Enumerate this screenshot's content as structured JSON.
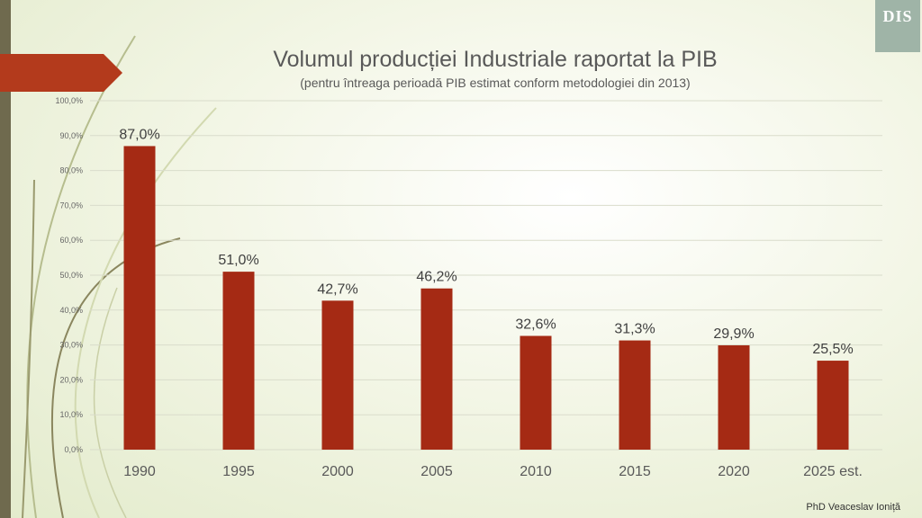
{
  "slide": {
    "title": "Volumul producției Industriale raportat la PIB",
    "subtitle": "(pentru întreaga perioadă PIB estimat conform metodologiei din 2013)",
    "credit": "PhD Veaceslav Ioniță",
    "logo_text": "DIS",
    "colors": {
      "bar": "#a52a14",
      "arrow": "#b33a1c",
      "left_bar": "#6f6a4e",
      "logo": "#9fb4a7"
    }
  },
  "chart_data": {
    "type": "bar",
    "categories": [
      "1990",
      "1995",
      "2000",
      "2005",
      "2010",
      "2015",
      "2020",
      "2025 est."
    ],
    "values": [
      87.0,
      51.0,
      42.7,
      46.2,
      32.6,
      31.3,
      29.9,
      25.5
    ],
    "data_labels": [
      "87,0%",
      "51,0%",
      "42,7%",
      "46,2%",
      "32,6%",
      "31,3%",
      "29,9%",
      "25,5%"
    ],
    "title": "Volumul producției Industriale raportat la PIB",
    "subtitle": "(pentru întreaga perioadă PIB estimat conform metodologiei din 2013)",
    "xlabel": "",
    "ylabel": "",
    "ylim": [
      0,
      100
    ],
    "yticks": [
      0,
      10,
      20,
      30,
      40,
      50,
      60,
      70,
      80,
      90,
      100
    ],
    "ytick_labels": [
      "0,0%",
      "10,0%",
      "20,0%",
      "30,0%",
      "40,0%",
      "50,0%",
      "60,0%",
      "70,0%",
      "80,0%",
      "90,0%",
      "100,0%"
    ],
    "grid": true,
    "legend": "none",
    "bar_color": "#a52a14"
  }
}
